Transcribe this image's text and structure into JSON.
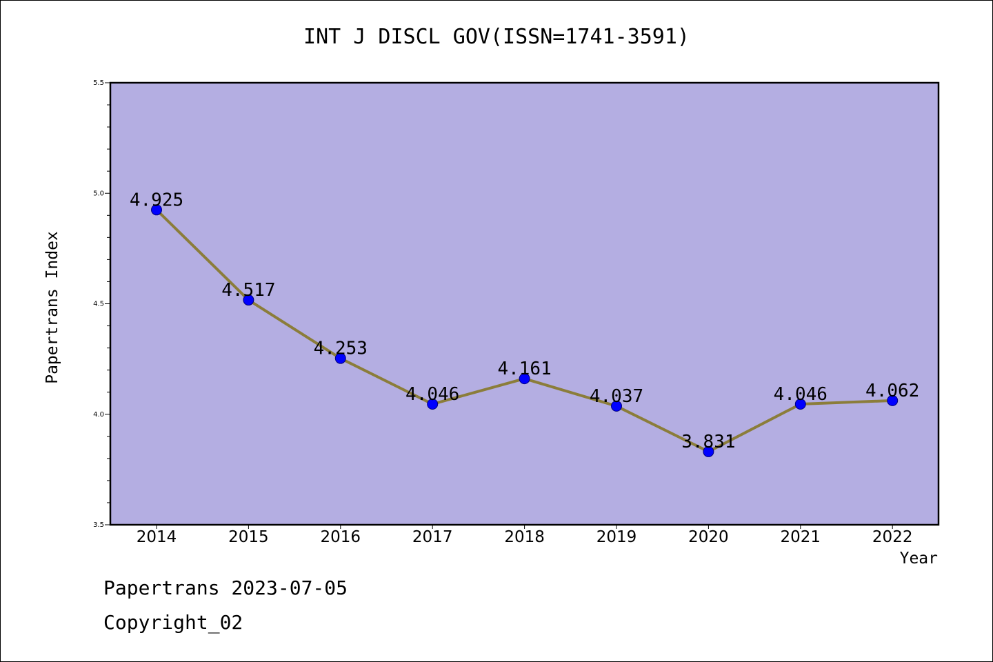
{
  "chart_data": {
    "type": "line",
    "title": "INT J DISCL GOV(ISSN=1741-3591)",
    "xlabel": "Year",
    "ylabel": "Papertrans Index",
    "categories": [
      "2014",
      "2015",
      "2016",
      "2017",
      "2018",
      "2019",
      "2020",
      "2021",
      "2022"
    ],
    "series": [
      {
        "values": [
          4.925,
          4.517,
          4.253,
          4.046,
          4.161,
          4.037,
          3.831,
          4.046,
          4.062
        ]
      }
    ],
    "data_labels": [
      "4.925",
      "4.517",
      "4.253",
      "4.046",
      "4.161",
      "4.037",
      "3.831",
      "4.046",
      "4.062"
    ],
    "ylim": [
      3.5,
      5.5
    ],
    "yticks": [
      "3.5",
      "4.0",
      "4.5",
      "5.0",
      "5.5"
    ],
    "grid": false,
    "colors": {
      "plot_background": "#b4aee2",
      "line": "#8b7d3a",
      "marker": "#0000ff"
    }
  },
  "footer": {
    "line1": "Papertrans 2023-07-05",
    "line2": "Copyright_02"
  }
}
